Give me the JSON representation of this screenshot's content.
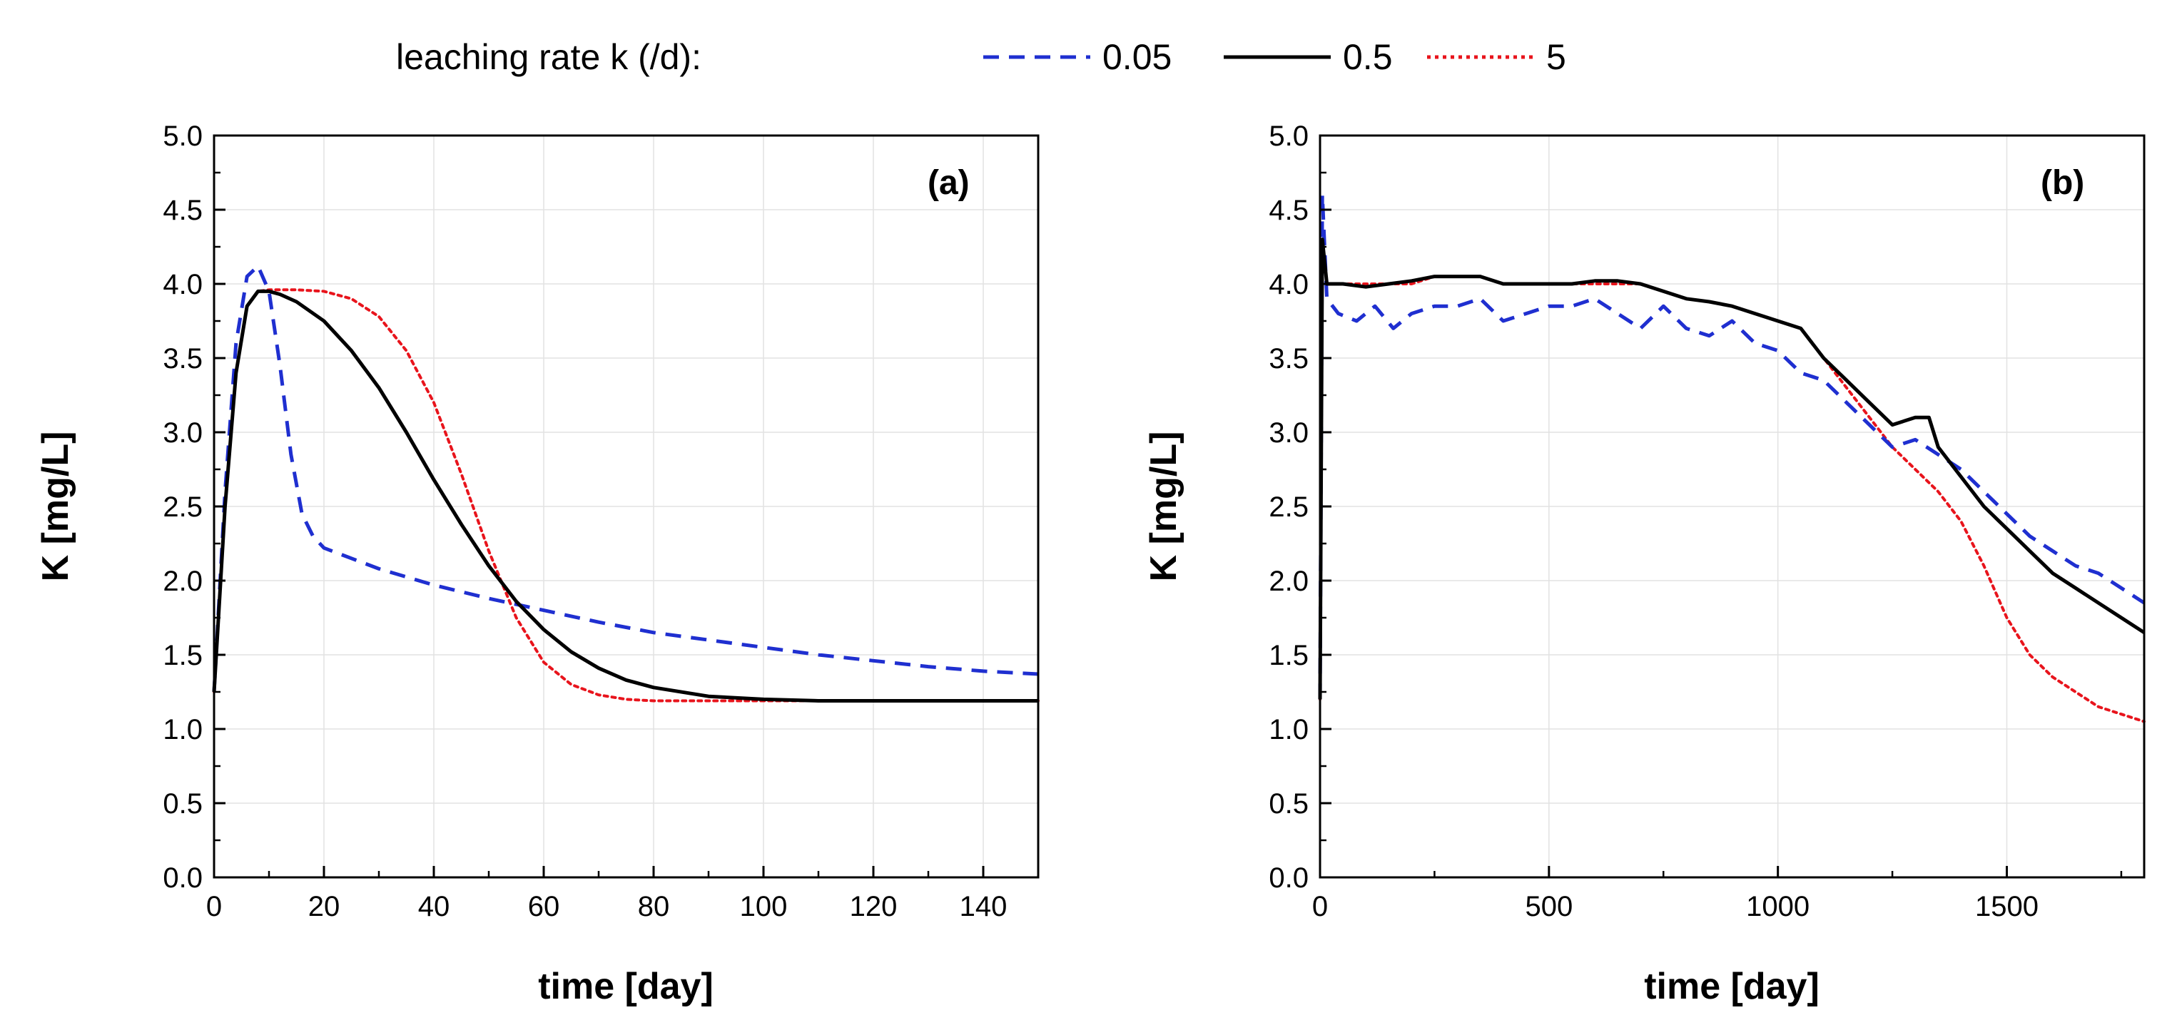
{
  "legend": {
    "title": "leaching rate k (/d):",
    "entries": [
      {
        "label": "0.05",
        "color": "#1f2fd0",
        "dash": "dashed"
      },
      {
        "label": "0.5",
        "color": "#000000",
        "dash": "solid"
      },
      {
        "label": "5",
        "color": "#e8141c",
        "dash": "dotted"
      }
    ]
  },
  "chart_data": [
    {
      "type": "line",
      "panel_label": "(a)",
      "xlabel": "time [day]",
      "ylabel": "K [mg/L]",
      "xlim": [
        0,
        150
      ],
      "ylim": [
        0,
        5
      ],
      "xticks": [
        0,
        20,
        40,
        60,
        80,
        100,
        120,
        140
      ],
      "yticks": [
        "0.0",
        "0.5",
        "1.0",
        "1.5",
        "2.0",
        "2.5",
        "3.0",
        "3.5",
        "4.0",
        "4.5",
        "5.0"
      ],
      "grid": true,
      "series": [
        {
          "name": "0.05",
          "color": "#1f2fd0",
          "dash": "dashed",
          "x": [
            0,
            2,
            4,
            6,
            8,
            10,
            12,
            14,
            16,
            18,
            20,
            25,
            30,
            40,
            50,
            60,
            70,
            80,
            90,
            100,
            110,
            120,
            130,
            140,
            150
          ],
          "y": [
            1.25,
            2.6,
            3.6,
            4.05,
            4.12,
            3.95,
            3.45,
            2.85,
            2.45,
            2.3,
            2.22,
            2.15,
            2.08,
            1.97,
            1.88,
            1.8,
            1.72,
            1.65,
            1.6,
            1.55,
            1.5,
            1.46,
            1.42,
            1.39,
            1.37
          ]
        },
        {
          "name": "0.5",
          "color": "#000000",
          "dash": "solid",
          "x": [
            0,
            2,
            4,
            6,
            8,
            10,
            12,
            15,
            20,
            25,
            30,
            35,
            40,
            45,
            50,
            55,
            60,
            65,
            70,
            75,
            80,
            90,
            100,
            110,
            120,
            135,
            150
          ],
          "y": [
            1.25,
            2.5,
            3.4,
            3.85,
            3.95,
            3.95,
            3.93,
            3.88,
            3.75,
            3.55,
            3.3,
            3.0,
            2.68,
            2.38,
            2.1,
            1.86,
            1.67,
            1.52,
            1.41,
            1.33,
            1.28,
            1.22,
            1.2,
            1.19,
            1.19,
            1.19,
            1.19
          ]
        },
        {
          "name": "5",
          "color": "#e8141c",
          "dash": "dotted",
          "x": [
            0,
            2,
            4,
            6,
            8,
            10,
            15,
            20,
            25,
            30,
            35,
            40,
            45,
            50,
            55,
            60,
            65,
            70,
            75,
            80,
            90,
            100,
            120,
            150
          ],
          "y": [
            1.25,
            2.5,
            3.4,
            3.85,
            3.95,
            3.96,
            3.96,
            3.95,
            3.9,
            3.78,
            3.55,
            3.2,
            2.72,
            2.2,
            1.75,
            1.45,
            1.3,
            1.23,
            1.2,
            1.19,
            1.19,
            1.19,
            1.19,
            1.19
          ]
        }
      ]
    },
    {
      "type": "line",
      "panel_label": "(b)",
      "xlabel": "time [day]",
      "ylabel": "K [mg/L]",
      "xlim": [
        0,
        1800
      ],
      "ylim": [
        0,
        5
      ],
      "xticks": [
        0,
        500,
        1000,
        1500
      ],
      "yticks": [
        "0.0",
        "0.5",
        "1.0",
        "1.5",
        "2.0",
        "2.5",
        "3.0",
        "3.5",
        "4.0",
        "4.5",
        "5.0"
      ],
      "grid": true,
      "series": [
        {
          "name": "0.05",
          "color": "#1f2fd0",
          "dash": "dashed",
          "x": [
            0,
            5,
            15,
            40,
            80,
            120,
            160,
            200,
            250,
            300,
            350,
            400,
            450,
            500,
            550,
            600,
            650,
            700,
            750,
            800,
            850,
            900,
            950,
            1000,
            1050,
            1100,
            1150,
            1200,
            1250,
            1300,
            1350,
            1400,
            1450,
            1500,
            1550,
            1600,
            1650,
            1700,
            1750,
            1800
          ],
          "y": [
            1.2,
            4.6,
            3.9,
            3.8,
            3.75,
            3.85,
            3.7,
            3.8,
            3.85,
            3.85,
            3.9,
            3.75,
            3.8,
            3.85,
            3.85,
            3.9,
            3.8,
            3.7,
            3.85,
            3.7,
            3.65,
            3.75,
            3.6,
            3.55,
            3.4,
            3.35,
            3.2,
            3.05,
            2.9,
            2.95,
            2.85,
            2.75,
            2.6,
            2.45,
            2.3,
            2.2,
            2.1,
            2.05,
            1.95,
            1.85
          ],
          "spikes": [
            [
              0.05,
              -0.35
            ],
            [
              0.12,
              -0.3
            ],
            [
              0.2,
              -0.35
            ],
            [
              0.3,
              -0.25
            ],
            [
              0.42,
              -0.3
            ],
            [
              0.55,
              -0.35
            ],
            [
              0.68,
              -0.3
            ],
            [
              0.78,
              -0.25
            ]
          ]
        },
        {
          "name": "0.5",
          "color": "#000000",
          "dash": "solid",
          "x": [
            0,
            5,
            15,
            50,
            100,
            150,
            200,
            250,
            300,
            350,
            400,
            450,
            500,
            550,
            600,
            650,
            700,
            750,
            800,
            850,
            900,
            950,
            1000,
            1050,
            1100,
            1150,
            1200,
            1250,
            1300,
            1330,
            1350,
            1400,
            1450,
            1500,
            1550,
            1600,
            1650,
            1700,
            1750,
            1800
          ],
          "y": [
            1.2,
            4.3,
            4.0,
            4.0,
            3.98,
            4.0,
            4.02,
            4.05,
            4.05,
            4.05,
            4.0,
            4.0,
            4.0,
            4.0,
            4.02,
            4.02,
            4.0,
            3.95,
            3.9,
            3.88,
            3.85,
            3.8,
            3.75,
            3.7,
            3.5,
            3.35,
            3.2,
            3.05,
            3.1,
            3.1,
            2.9,
            2.7,
            2.5,
            2.35,
            2.2,
            2.05,
            1.95,
            1.85,
            1.75,
            1.65
          ]
        },
        {
          "name": "5",
          "color": "#e8141c",
          "dash": "dotted",
          "x": [
            0,
            5,
            15,
            50,
            100,
            150,
            200,
            250,
            300,
            350,
            400,
            450,
            500,
            550,
            600,
            650,
            700,
            750,
            800,
            850,
            900,
            950,
            1000,
            1050,
            1100,
            1150,
            1200,
            1250,
            1300,
            1350,
            1400,
            1450,
            1500,
            1550,
            1600,
            1650,
            1700,
            1750,
            1800
          ],
          "y": [
            1.2,
            4.3,
            4.0,
            4.0,
            4.0,
            4.0,
            4.0,
            4.05,
            4.05,
            4.05,
            4.0,
            4.0,
            4.0,
            4.0,
            4.0,
            4.0,
            4.0,
            3.95,
            3.9,
            3.88,
            3.85,
            3.8,
            3.75,
            3.7,
            3.5,
            3.3,
            3.1,
            2.9,
            2.75,
            2.6,
            2.4,
            2.1,
            1.75,
            1.5,
            1.35,
            1.25,
            1.15,
            1.1,
            1.05
          ]
        }
      ]
    }
  ]
}
